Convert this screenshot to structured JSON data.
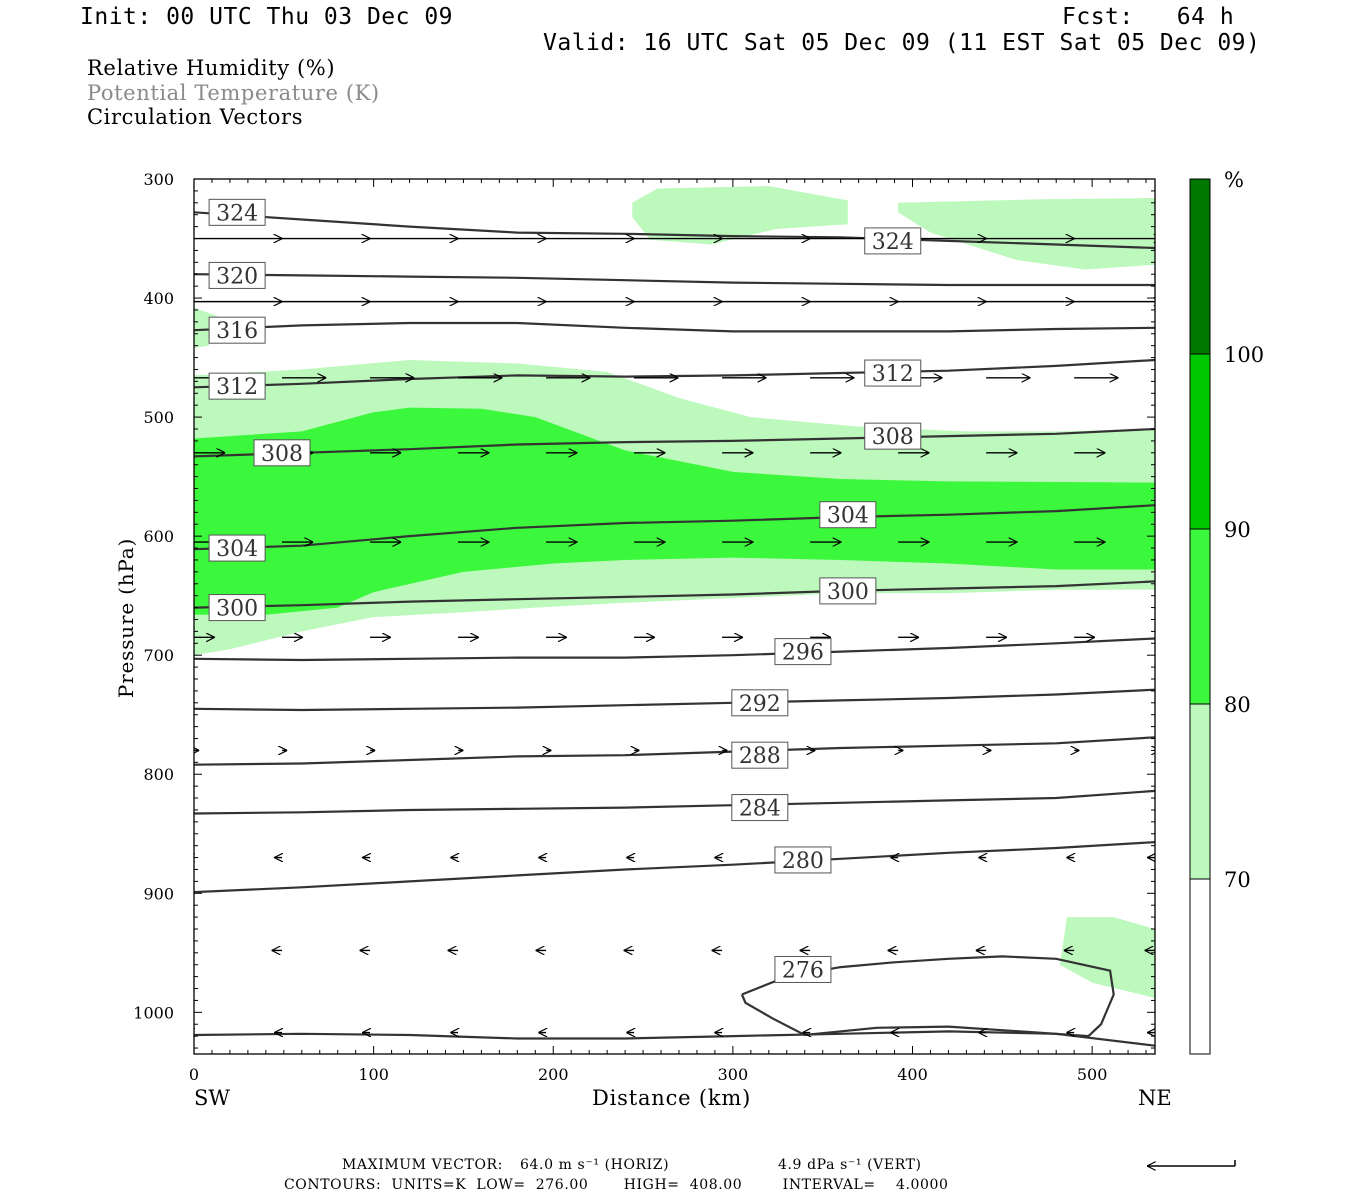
{
  "header": {
    "init": "Init: 00 UTC Thu 03 Dec 09",
    "fcst": "Fcst:   64 h",
    "valid": "Valid: 16 UTC Sat 05 Dec 09 (11 EST Sat 05 Dec 09)"
  },
  "fields": [
    "Relative Humidity (%)",
    "Potential Temperature (K)",
    "Circulation Vectors"
  ],
  "footer": {
    "max_vector_label": "MAXIMUM VECTOR:",
    "max_vector_horiz": "64.0 m s⁻¹ (HORIZ)",
    "max_vector_vert": "4.9 dPa s⁻¹ (VERT)",
    "contours": "CONTOURS:  UNITS=K  LOW=  276.00       HIGH=  408.00        INTERVAL=    4.0000"
  },
  "colors": {
    "rh_70_80": "#bdf8bd",
    "rh_80_90": "#3cf83c",
    "rh_90_100": "#00c800",
    "rh_100": "#007800",
    "contour": "#333333"
  },
  "chart_data": {
    "type": "cross-section",
    "xlabel": "Distance (km)",
    "ylabel": "Pressure (hPa)",
    "xlim": [
      0,
      535
    ],
    "ylim": [
      1035,
      300
    ],
    "x_ticks": [
      0,
      100,
      200,
      300,
      400,
      500
    ],
    "y_ticks": [
      300,
      400,
      500,
      600,
      700,
      800,
      900,
      1000
    ],
    "x_left_end_label": "SW",
    "x_right_end_label": "NE",
    "colorbar": {
      "unit": "%",
      "levels": [
        70,
        80,
        90,
        100
      ],
      "level_labels": [
        "70",
        "80",
        "90",
        "100"
      ]
    },
    "rh_regions": [
      {
        "level": "70-80",
        "polygon": [
          [
            244,
            320
          ],
          [
            258,
            308
          ],
          [
            320,
            306
          ],
          [
            364,
            318
          ],
          [
            364,
            338
          ],
          [
            324,
            342
          ],
          [
            288,
            355
          ],
          [
            254,
            351
          ],
          [
            244,
            332
          ]
        ]
      },
      {
        "level": "70-80",
        "polygon": [
          [
            392,
            320
          ],
          [
            472,
            317
          ],
          [
            535,
            316
          ],
          [
            535,
            372
          ],
          [
            496,
            376
          ],
          [
            458,
            368
          ],
          [
            410,
            345
          ],
          [
            392,
            328
          ]
        ]
      },
      {
        "level": "70-80",
        "polygon": [
          [
            0,
            408
          ],
          [
            18,
            418
          ],
          [
            8,
            440
          ],
          [
            0,
            442
          ]
        ]
      },
      {
        "level": "70-80",
        "polygon": [
          [
            0,
            465
          ],
          [
            60,
            460
          ],
          [
            120,
            452
          ],
          [
            180,
            455
          ],
          [
            230,
            462
          ],
          [
            270,
            484
          ],
          [
            310,
            500
          ],
          [
            370,
            508
          ],
          [
            430,
            512
          ],
          [
            480,
            512
          ],
          [
            535,
            510
          ],
          [
            535,
            645
          ],
          [
            480,
            645
          ],
          [
            420,
            648
          ],
          [
            360,
            648
          ],
          [
            300,
            652
          ],
          [
            240,
            656
          ],
          [
            190,
            660
          ],
          [
            150,
            664
          ],
          [
            100,
            668
          ],
          [
            60,
            680
          ],
          [
            20,
            695
          ],
          [
            0,
            700
          ]
        ]
      },
      {
        "level": "70-80",
        "polygon": [
          [
            486,
            920
          ],
          [
            512,
            920
          ],
          [
            535,
            930
          ],
          [
            535,
            988
          ],
          [
            500,
            975
          ],
          [
            482,
            960
          ]
        ]
      },
      {
        "level": "80-90",
        "polygon": [
          [
            0,
            518
          ],
          [
            60,
            512
          ],
          [
            100,
            496
          ],
          [
            120,
            492
          ],
          [
            160,
            493
          ],
          [
            190,
            500
          ],
          [
            240,
            528
          ],
          [
            300,
            546
          ],
          [
            360,
            552
          ],
          [
            420,
            554
          ],
          [
            535,
            555
          ],
          [
            535,
            628
          ],
          [
            480,
            628
          ],
          [
            420,
            623
          ],
          [
            360,
            620
          ],
          [
            300,
            618
          ],
          [
            240,
            620
          ],
          [
            200,
            623
          ],
          [
            150,
            630
          ],
          [
            100,
            647
          ],
          [
            80,
            660
          ],
          [
            40,
            666
          ],
          [
            0,
            666
          ]
        ]
      }
    ],
    "theta_contours": [
      {
        "value": 324,
        "points": [
          [
            0,
            328
          ],
          [
            60,
            334
          ],
          [
            120,
            340
          ],
          [
            180,
            345
          ],
          [
            240,
            346
          ],
          [
            300,
            348
          ],
          [
            360,
            349
          ],
          [
            420,
            352
          ],
          [
            480,
            355
          ],
          [
            535,
            358
          ]
        ]
      },
      {
        "value": 320,
        "points": [
          [
            0,
            380
          ],
          [
            60,
            381
          ],
          [
            120,
            382
          ],
          [
            180,
            383
          ],
          [
            240,
            385
          ],
          [
            300,
            387
          ],
          [
            360,
            388
          ],
          [
            420,
            389
          ],
          [
            480,
            389
          ],
          [
            535,
            389
          ]
        ]
      },
      {
        "value": 316,
        "points": [
          [
            0,
            427
          ],
          [
            60,
            423
          ],
          [
            120,
            421
          ],
          [
            180,
            421
          ],
          [
            240,
            425
          ],
          [
            300,
            428
          ],
          [
            360,
            428
          ],
          [
            420,
            428
          ],
          [
            480,
            426
          ],
          [
            535,
            425
          ]
        ]
      },
      {
        "value": 312,
        "points": [
          [
            0,
            475
          ],
          [
            60,
            472
          ],
          [
            120,
            468
          ],
          [
            180,
            465
          ],
          [
            240,
            466
          ],
          [
            300,
            465
          ],
          [
            360,
            463
          ],
          [
            420,
            461
          ],
          [
            480,
            457
          ],
          [
            535,
            452
          ]
        ]
      },
      {
        "value": 308,
        "points": [
          [
            0,
            533
          ],
          [
            60,
            530
          ],
          [
            120,
            527
          ],
          [
            180,
            523
          ],
          [
            240,
            521
          ],
          [
            300,
            520
          ],
          [
            360,
            518
          ],
          [
            420,
            516
          ],
          [
            480,
            514
          ],
          [
            535,
            510
          ]
        ]
      },
      {
        "value": 304,
        "points": [
          [
            0,
            611
          ],
          [
            60,
            608
          ],
          [
            120,
            600
          ],
          [
            180,
            593
          ],
          [
            240,
            589
          ],
          [
            300,
            587
          ],
          [
            360,
            584
          ],
          [
            420,
            582
          ],
          [
            480,
            579
          ],
          [
            535,
            574
          ]
        ]
      },
      {
        "value": 300,
        "points": [
          [
            0,
            660
          ],
          [
            60,
            658
          ],
          [
            120,
            655
          ],
          [
            180,
            653
          ],
          [
            240,
            651
          ],
          [
            300,
            649
          ],
          [
            360,
            646
          ],
          [
            420,
            644
          ],
          [
            480,
            642
          ],
          [
            535,
            638
          ]
        ]
      },
      {
        "value": 296,
        "points": [
          [
            0,
            703
          ],
          [
            60,
            704
          ],
          [
            120,
            703
          ],
          [
            180,
            702
          ],
          [
            240,
            702
          ],
          [
            300,
            700
          ],
          [
            360,
            697
          ],
          [
            420,
            694
          ],
          [
            480,
            690
          ],
          [
            535,
            686
          ]
        ]
      },
      {
        "value": 292,
        "points": [
          [
            0,
            745
          ],
          [
            60,
            746
          ],
          [
            120,
            745
          ],
          [
            180,
            744
          ],
          [
            240,
            742
          ],
          [
            300,
            740
          ],
          [
            360,
            738
          ],
          [
            420,
            736
          ],
          [
            480,
            733
          ],
          [
            535,
            729
          ]
        ]
      },
      {
        "value": 288,
        "points": [
          [
            0,
            792
          ],
          [
            60,
            791
          ],
          [
            120,
            788
          ],
          [
            180,
            785
          ],
          [
            240,
            784
          ],
          [
            300,
            781
          ],
          [
            360,
            778
          ],
          [
            420,
            776
          ],
          [
            480,
            774
          ],
          [
            535,
            769
          ]
        ]
      },
      {
        "value": 284,
        "points": [
          [
            0,
            833
          ],
          [
            60,
            832
          ],
          [
            120,
            830
          ],
          [
            180,
            829
          ],
          [
            240,
            828
          ],
          [
            300,
            826
          ],
          [
            360,
            824
          ],
          [
            420,
            822
          ],
          [
            480,
            820
          ],
          [
            535,
            814
          ]
        ]
      },
      {
        "value": 280,
        "points": [
          [
            0,
            899
          ],
          [
            60,
            895
          ],
          [
            120,
            890
          ],
          [
            180,
            885
          ],
          [
            240,
            880
          ],
          [
            300,
            876
          ],
          [
            360,
            871
          ],
          [
            420,
            866
          ],
          [
            480,
            862
          ],
          [
            535,
            857
          ]
        ]
      },
      {
        "value": 276,
        "points": [
          [
            305,
            985
          ],
          [
            330,
            970
          ],
          [
            360,
            962
          ],
          [
            390,
            958
          ],
          [
            420,
            955
          ],
          [
            450,
            953
          ],
          [
            480,
            955
          ],
          [
            510,
            965
          ],
          [
            512,
            985
          ],
          [
            505,
            1010
          ],
          [
            498,
            1020
          ],
          [
            470,
            1017
          ],
          [
            420,
            1012
          ],
          [
            380,
            1013
          ],
          [
            340,
            1019
          ],
          [
            322,
            1005
          ],
          [
            307,
            992
          ],
          [
            305,
            985
          ]
        ]
      },
      {
        "value": null,
        "points": [
          [
            0,
            1019
          ],
          [
            60,
            1018
          ],
          [
            120,
            1019
          ],
          [
            180,
            1022
          ],
          [
            240,
            1022
          ],
          [
            300,
            1020
          ],
          [
            360,
            1018
          ],
          [
            420,
            1016
          ],
          [
            480,
            1018
          ],
          [
            535,
            1028
          ]
        ]
      }
    ],
    "contour_labels": [
      {
        "text": "324",
        "x": 24,
        "y": 328
      },
      {
        "text": "324",
        "x": 389,
        "y": 352
      },
      {
        "text": "320",
        "x": 24,
        "y": 381
      },
      {
        "text": "316",
        "x": 24,
        "y": 427
      },
      {
        "text": "312",
        "x": 24,
        "y": 474
      },
      {
        "text": "312",
        "x": 389,
        "y": 463
      },
      {
        "text": "308",
        "x": 49,
        "y": 530
      },
      {
        "text": "308",
        "x": 389,
        "y": 516
      },
      {
        "text": "304",
        "x": 24,
        "y": 610
      },
      {
        "text": "304",
        "x": 364,
        "y": 582
      },
      {
        "text": "300",
        "x": 24,
        "y": 660
      },
      {
        "text": "300",
        "x": 364,
        "y": 646
      },
      {
        "text": "296",
        "x": 339,
        "y": 697
      },
      {
        "text": "292",
        "x": 315,
        "y": 740
      },
      {
        "text": "288",
        "x": 315,
        "y": 784
      },
      {
        "text": "284",
        "x": 315,
        "y": 828
      },
      {
        "text": "280",
        "x": 339,
        "y": 872
      },
      {
        "text": "276",
        "x": 339,
        "y": 964
      }
    ],
    "vector_rows": [
      {
        "p": 350,
        "u": 34,
        "w": 0
      },
      {
        "p": 403,
        "u": 34,
        "w": 0
      },
      {
        "p": 467,
        "u": 17,
        "w": 0
      },
      {
        "p": 530,
        "u": 12,
        "w": 0
      },
      {
        "p": 605,
        "u": 12,
        "w": 0
      },
      {
        "p": 685,
        "u": 8,
        "w": 0
      },
      {
        "p": 780,
        "u": 2,
        "w": 0
      },
      {
        "p": 870,
        "u": -3,
        "w": 0
      },
      {
        "p": 948,
        "u": -4,
        "w": 0
      },
      {
        "p": 1017,
        "u": -3,
        "w": 0
      }
    ],
    "vector_x": [
      0,
      49,
      98,
      147,
      196,
      245,
      294,
      343,
      392,
      441,
      490,
      535
    ]
  }
}
